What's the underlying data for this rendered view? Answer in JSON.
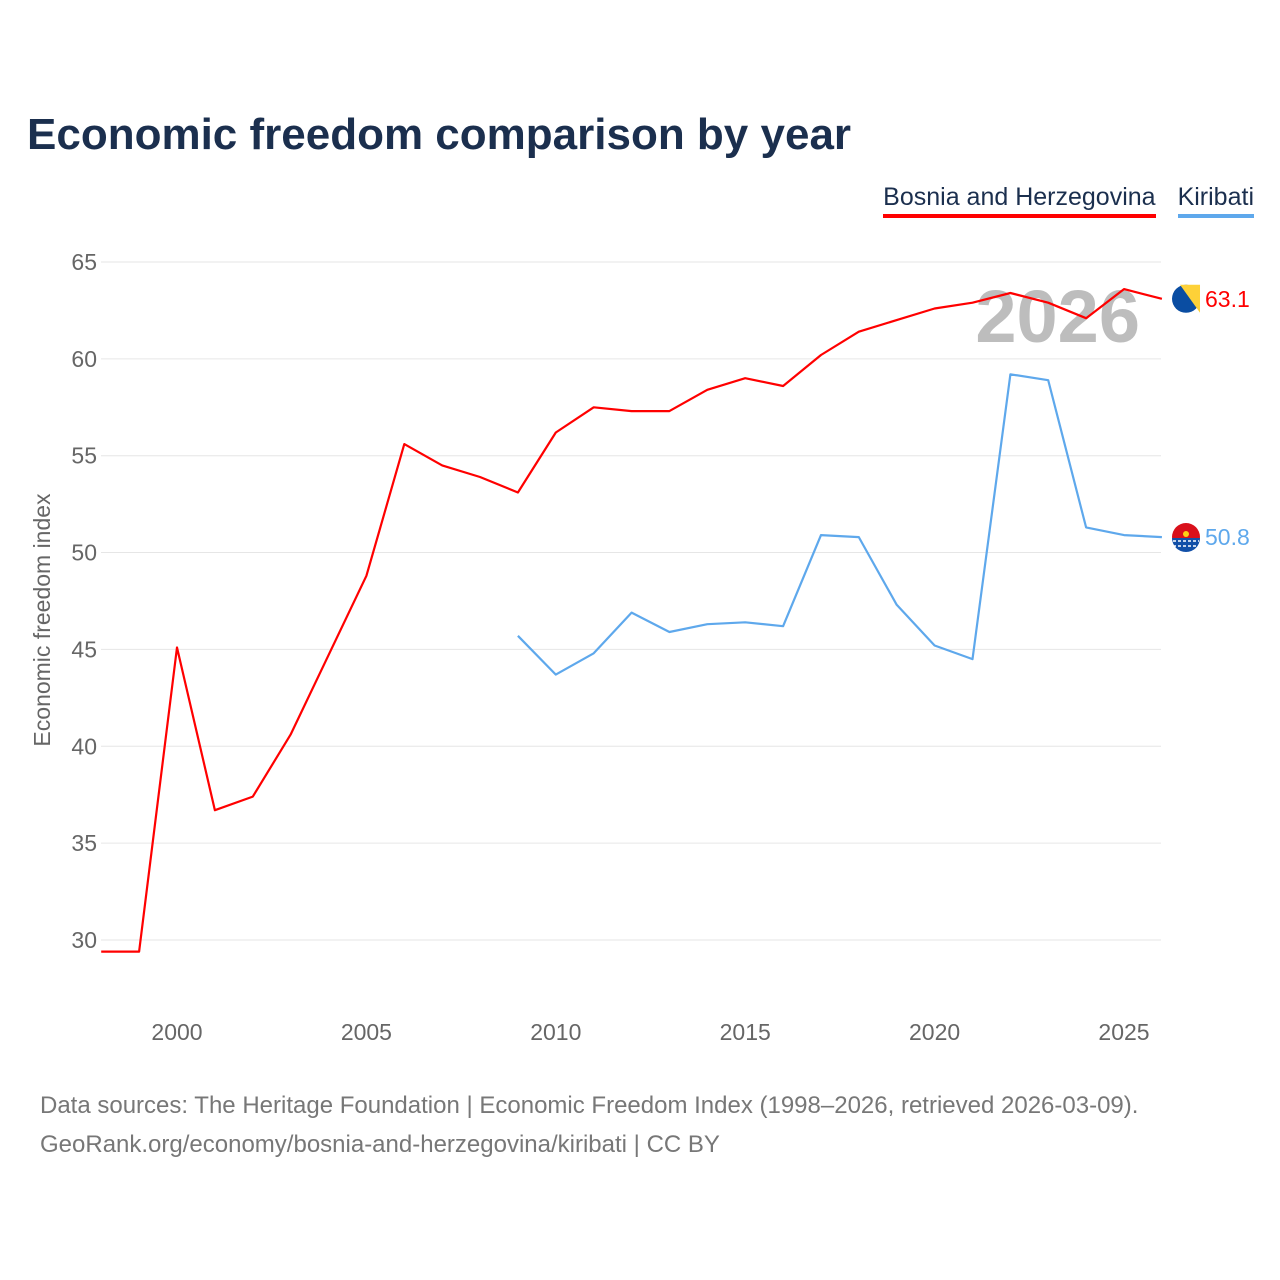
{
  "title": "Economic freedom comparison by year",
  "legend": [
    {
      "label": "Bosnia and Herzegovina",
      "color": "#ff0000"
    },
    {
      "label": "Kiribati",
      "color": "#5ea8ec"
    }
  ],
  "watermark_year": "2026",
  "footer": {
    "line1": "Data sources: The Heritage Foundation | Economic Freedom Index (1998–2026, retrieved 2026-03-09).",
    "line2": "GeoRank.org/economy/bosnia-and-herzegovina/kiribati | CC BY"
  },
  "chart_data": {
    "type": "line",
    "title": "Economic freedom comparison by year",
    "xlabel": "",
    "ylabel": "Economic freedom index",
    "xlim": [
      1998,
      2026
    ],
    "ylim": [
      27,
      67
    ],
    "xticks": [
      2000,
      2005,
      2010,
      2015,
      2020,
      2025
    ],
    "yticks": [
      30,
      35,
      40,
      45,
      50,
      55,
      60,
      65
    ],
    "grid": true,
    "legend_position": "top-right",
    "series": [
      {
        "name": "Bosnia and Herzegovina",
        "color": "#ff0000",
        "end_label": "63.1",
        "flag": "bosnia-flag",
        "x": [
          1998,
          1999,
          2000,
          2001,
          2002,
          2003,
          2004,
          2005,
          2006,
          2007,
          2008,
          2009,
          2010,
          2011,
          2012,
          2013,
          2014,
          2015,
          2016,
          2017,
          2018,
          2019,
          2020,
          2021,
          2022,
          2023,
          2024,
          2025,
          2026
        ],
        "y": [
          29.4,
          29.4,
          45.1,
          36.7,
          37.4,
          40.6,
          44.7,
          48.8,
          55.6,
          54.5,
          53.9,
          53.1,
          56.2,
          57.5,
          57.3,
          57.3,
          58.4,
          59.0,
          58.6,
          60.2,
          61.4,
          62.0,
          62.6,
          62.9,
          63.4,
          62.9,
          62.1,
          63.6,
          63.1
        ]
      },
      {
        "name": "Kiribati",
        "color": "#5ea8ec",
        "end_label": "50.8",
        "flag": "kiribati-flag",
        "x": [
          2009,
          2010,
          2011,
          2012,
          2013,
          2014,
          2015,
          2016,
          2017,
          2018,
          2019,
          2020,
          2021,
          2022,
          2023,
          2024,
          2025,
          2026
        ],
        "y": [
          45.7,
          43.7,
          44.8,
          46.9,
          45.9,
          46.3,
          46.4,
          46.2,
          50.9,
          50.8,
          47.3,
          45.2,
          44.5,
          59.2,
          58.9,
          51.3,
          50.9,
          50.8
        ]
      }
    ]
  }
}
